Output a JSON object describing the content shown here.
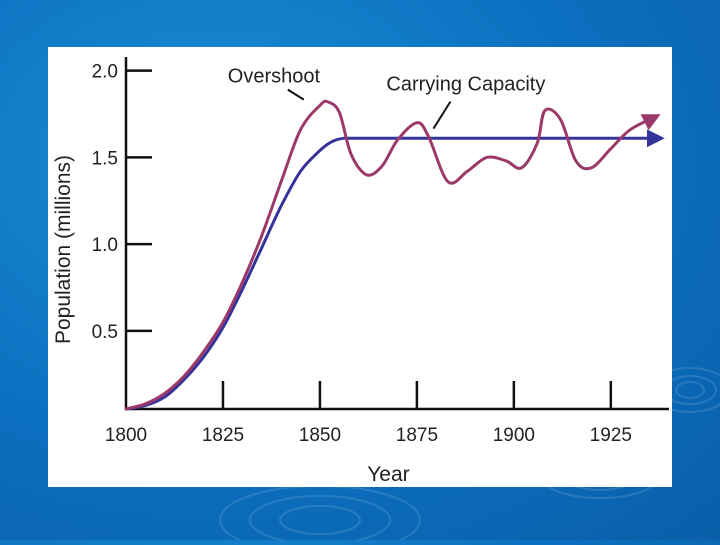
{
  "slide": {
    "background_color": "#0b6fbf",
    "panel_color": "#ffffff"
  },
  "chart_data": {
    "type": "line",
    "title": "",
    "xlabel": "Year",
    "ylabel": "Population (millions)",
    "xlim": [
      1800,
      1940
    ],
    "ylim": [
      0.05,
      2.05
    ],
    "x_ticks": [
      1800,
      1825,
      1850,
      1875,
      1900,
      1925
    ],
    "x_tick_labels": [
      "1800",
      "1825",
      "1850",
      "1875",
      "1900",
      "1925"
    ],
    "y_ticks": [
      0.5,
      1.0,
      1.5,
      2.0
    ],
    "y_tick_labels": [
      "0.5",
      "1.0",
      "1.5",
      "2.0"
    ],
    "series": [
      {
        "name": "Carrying Capacity",
        "color": "#33339a",
        "arrow_end": true,
        "x": [
          1800,
          1805,
          1810,
          1815,
          1820,
          1825,
          1830,
          1835,
          1840,
          1845,
          1850,
          1853,
          1856,
          1860,
          1880,
          1900,
          1920,
          1938
        ],
        "y": [
          0.05,
          0.07,
          0.12,
          0.22,
          0.35,
          0.52,
          0.74,
          0.98,
          1.22,
          1.42,
          1.54,
          1.59,
          1.61,
          1.61,
          1.61,
          1.61,
          1.61,
          1.61
        ]
      },
      {
        "name": "Population",
        "color": "#9b3a6a",
        "arrow_end": true,
        "x": [
          1800,
          1805,
          1810,
          1815,
          1820,
          1825,
          1830,
          1835,
          1840,
          1845,
          1850,
          1852,
          1855,
          1858,
          1862,
          1866,
          1870,
          1875,
          1878,
          1883,
          1888,
          1893,
          1898,
          1902,
          1906,
          1908,
          1912,
          1916,
          1920,
          1925,
          1930,
          1937
        ],
        "y": [
          0.05,
          0.08,
          0.14,
          0.24,
          0.38,
          0.55,
          0.78,
          1.05,
          1.36,
          1.66,
          1.8,
          1.82,
          1.76,
          1.52,
          1.4,
          1.45,
          1.6,
          1.7,
          1.62,
          1.36,
          1.42,
          1.5,
          1.48,
          1.44,
          1.58,
          1.77,
          1.72,
          1.48,
          1.44,
          1.55,
          1.66,
          1.74
        ]
      }
    ],
    "annotations": [
      {
        "text": "Overshoot",
        "target_x": 1851,
        "target_y": 1.81
      },
      {
        "text": "Carrying Capacity",
        "target_x": 1887,
        "target_y": 1.62
      }
    ]
  }
}
